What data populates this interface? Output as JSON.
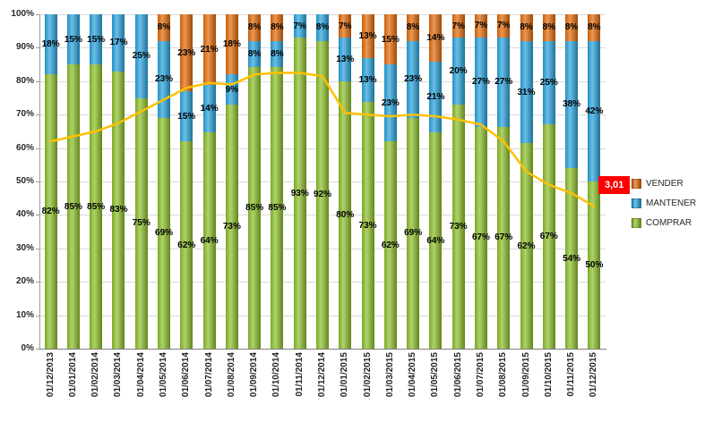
{
  "chart_data": {
    "type": "bar",
    "subtype": "stacked-100-percent-column-with-line",
    "title": "",
    "categories": [
      "01/12/2013",
      "01/01/2014",
      "01/02/2014",
      "01/03/2014",
      "01/04/2014",
      "01/05/2014",
      "01/06/2014",
      "01/07/2014",
      "01/08/2014",
      "01/09/2014",
      "01/10/2014",
      "01/11/2014",
      "01/12/2014",
      "01/01/2015",
      "01/02/2015",
      "01/03/2015",
      "01/04/2015",
      "01/05/2015",
      "01/06/2015",
      "01/07/2015",
      "01/08/2015",
      "01/09/2015",
      "01/10/2015",
      "01/11/2015",
      "01/12/2015"
    ],
    "series": [
      {
        "name": "COMPRAR",
        "color": "#8CBF2A",
        "values": [
          82,
          85,
          85,
          83,
          75,
          69,
          62,
          64,
          73,
          85,
          85,
          93,
          92,
          80,
          73,
          62,
          69,
          64,
          73,
          67,
          67,
          62,
          67,
          54,
          50
        ]
      },
      {
        "name": "MANTENER",
        "color": "#29A3DC",
        "values": [
          18,
          15,
          15,
          17,
          25,
          23,
          15,
          14,
          9,
          8,
          8,
          7,
          8,
          13,
          13,
          23,
          23,
          21,
          20,
          27,
          27,
          31,
          25,
          38,
          42
        ]
      },
      {
        "name": "VENDER",
        "color": "#E26B0A",
        "values": [
          0,
          0,
          0,
          0,
          0,
          8,
          23,
          21,
          18,
          8,
          8,
          0,
          0,
          7,
          13,
          15,
          8,
          14,
          7,
          7,
          7,
          8,
          8,
          8,
          8
        ]
      }
    ],
    "line_overlay": {
      "name": "trend-line",
      "color": "#FFC000",
      "values": [
        62,
        63.5,
        65,
        67.5,
        71,
        74.5,
        78,
        79.5,
        79,
        82,
        82.5,
        82.5,
        81.5,
        70.5,
        70,
        69.5,
        70,
        69.5,
        68.5,
        67,
        62,
        53,
        49,
        46.5,
        42.5
      ]
    },
    "annotation": {
      "label": "3,01",
      "bg": "#FF0000",
      "text_color": "#FFFFFF"
    },
    "y_axis": {
      "min": 0,
      "max": 100,
      "ticks": [
        "0%",
        "10%",
        "20%",
        "30%",
        "40%",
        "50%",
        "60%",
        "70%",
        "80%",
        "90%",
        "100%"
      ],
      "grid": true
    },
    "x_axis": {
      "label_rotation": -90
    },
    "legend": {
      "position": "right",
      "entries": [
        "VENDER",
        "MANTENER",
        "COMPRAR"
      ]
    },
    "label_format": "percent-no-decimals"
  }
}
